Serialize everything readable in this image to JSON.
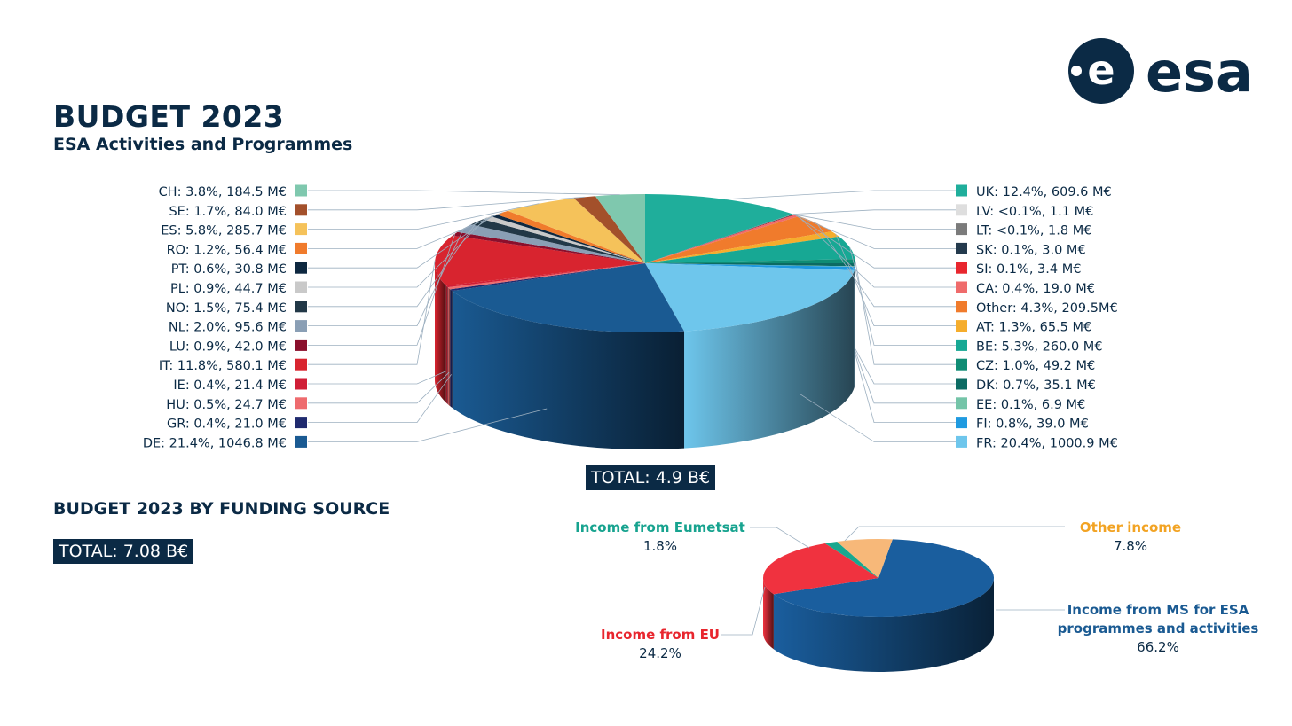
{
  "header": {
    "title": "BUDGET 2023",
    "subtitle": "ESA Activities and Programmes",
    "logo_text": "esa"
  },
  "totals": {
    "main": "TOTAL: 4.9 B€",
    "funding": "TOTAL: 7.08 B€"
  },
  "funding_section": {
    "title": "BUDGET 2023 BY FUNDING SOURCE"
  },
  "colors": {
    "navy": "#0b2a45",
    "leader_line": "#9db0c0"
  },
  "chart_data": [
    {
      "type": "pie",
      "title": "ESA Activities and Programmes",
      "total": "TOTAL: 4.9 B€",
      "slices": [
        {
          "code": "UK",
          "label": "UK: 12.4%, 609.6 M€",
          "percent": 12.4,
          "value_meur": 609.6,
          "color": "#1fae9b"
        },
        {
          "code": "LV",
          "label": "LV: <0.1%, 1.1 M€",
          "percent": 0.02,
          "value_meur": 1.1,
          "color": "#dedede"
        },
        {
          "code": "LT",
          "label": "LT: <0.1%, 1.8 M€",
          "percent": 0.04,
          "value_meur": 1.8,
          "color": "#7b7b7b"
        },
        {
          "code": "SK",
          "label": "SK: 0.1%, 3.0 M€",
          "percent": 0.1,
          "value_meur": 3.0,
          "color": "#243a4d"
        },
        {
          "code": "SI",
          "label": "SI: 0.1%, 3.4 M€",
          "percent": 0.1,
          "value_meur": 3.4,
          "color": "#e8262e"
        },
        {
          "code": "CA",
          "label": "CA: 0.4%, 19.0 M€",
          "percent": 0.4,
          "value_meur": 19.0,
          "color": "#ef6b6b"
        },
        {
          "code": "Other",
          "label": "Other: 4.3%, 209.5M€",
          "percent": 4.3,
          "value_meur": 209.5,
          "color": "#f07b2c"
        },
        {
          "code": "AT",
          "label": "AT: 1.3%, 65.5 M€",
          "percent": 1.3,
          "value_meur": 65.5,
          "color": "#f5ad2d"
        },
        {
          "code": "BE",
          "label": "BE: 5.3%, 260.0 M€",
          "percent": 5.3,
          "value_meur": 260.0,
          "color": "#17a894"
        },
        {
          "code": "CZ",
          "label": "CZ: 1.0%, 49.2 M€",
          "percent": 1.0,
          "value_meur": 49.2,
          "color": "#0f8c74"
        },
        {
          "code": "DK",
          "label": "DK: 0.7%, 35.1 M€",
          "percent": 0.7,
          "value_meur": 35.1,
          "color": "#0c6b63"
        },
        {
          "code": "EE",
          "label": "EE:  0.1%, 6.9 M€",
          "percent": 0.1,
          "value_meur": 6.9,
          "color": "#74c4a8"
        },
        {
          "code": "FI",
          "label": "FI: 0.8%, 39.0 M€",
          "percent": 0.8,
          "value_meur": 39.0,
          "color": "#1f9ae0"
        },
        {
          "code": "FR",
          "label": "FR: 20.4%, 1000.9 M€",
          "percent": 20.4,
          "value_meur": 1000.9,
          "color": "#6ec6ec"
        },
        {
          "code": "DE",
          "label": "DE: 21.4%, 1046.8 M€",
          "percent": 21.4,
          "value_meur": 1046.8,
          "color": "#1a5a92"
        },
        {
          "code": "GR",
          "label": "GR: 0.4%, 21.0 M€",
          "percent": 0.4,
          "value_meur": 21.0,
          "color": "#1f2a6e"
        },
        {
          "code": "HU",
          "label": "HU: 0.5%, 24.7 M€",
          "percent": 0.5,
          "value_meur": 24.7,
          "color": "#ee6b6e"
        },
        {
          "code": "IE",
          "label": "IE: 0.4%, 21.4 M€",
          "percent": 0.4,
          "value_meur": 21.4,
          "color": "#d01e36"
        },
        {
          "code": "IT",
          "label": "IT: 11.8%, 580.1 M€",
          "percent": 11.8,
          "value_meur": 580.1,
          "color": "#d8242f"
        },
        {
          "code": "LU",
          "label": "LU: 0.9%, 42.0 M€",
          "percent": 0.9,
          "value_meur": 42.0,
          "color": "#8a0f2c"
        },
        {
          "code": "NL",
          "label": "NL: 2.0%, 95.6 M€",
          "percent": 2.0,
          "value_meur": 95.6,
          "color": "#8a9fb5"
        },
        {
          "code": "NO",
          "label": "NO: 1.5%, 75.4 M€",
          "percent": 1.5,
          "value_meur": 75.4,
          "color": "#223847"
        },
        {
          "code": "PL",
          "label": "PL: 0.9%, 44.7 M€",
          "percent": 0.9,
          "value_meur": 44.7,
          "color": "#c9c9c9"
        },
        {
          "code": "PT",
          "label": "PT: 0.6%, 30.8 M€",
          "percent": 0.6,
          "value_meur": 30.8,
          "color": "#0e2840"
        },
        {
          "code": "RO",
          "label": "RO: 1.2%, 56.4 M€",
          "percent": 1.2,
          "value_meur": 56.4,
          "color": "#f07b2c"
        },
        {
          "code": "ES",
          "label": "ES: 5.8%, 285.7 M€",
          "percent": 5.8,
          "value_meur": 285.7,
          "color": "#f5c25a"
        },
        {
          "code": "SE",
          "label": "SE: 1.7%, 84.0 M€",
          "percent": 1.7,
          "value_meur": 84.0,
          "color": "#a3502b"
        },
        {
          "code": "CH",
          "label": "CH: 3.8%, 184.5 M€",
          "percent": 3.8,
          "value_meur": 184.5,
          "color": "#7fc8ae"
        }
      ],
      "legend_left": [
        "CH",
        "SE",
        "ES",
        "RO",
        "PT",
        "PL",
        "NO",
        "NL",
        "LU",
        "IT",
        "IE",
        "HU",
        "GR",
        "DE"
      ],
      "legend_right": [
        "UK",
        "LV",
        "LT",
        "SK",
        "SI",
        "CA",
        "Other",
        "AT",
        "BE",
        "CZ",
        "DK",
        "EE",
        "FI",
        "FR"
      ]
    },
    {
      "type": "pie",
      "title": "BUDGET 2023 BY FUNDING SOURCE",
      "total": "TOTAL: 7.08 B€",
      "slices": [
        {
          "name": "Income from MS for ESA programmes and activities",
          "lines": [
            "Income from MS for ESA",
            "programmes and activities"
          ],
          "percent": 66.2,
          "percent_label": "66.2%",
          "color": "#1a5e9e",
          "label_color": "#1a5a92"
        },
        {
          "name": "Income from EU",
          "lines": [
            "Income from EU"
          ],
          "percent": 24.2,
          "percent_label": "24.2%",
          "color": "#f0323f",
          "label_color": "#e8262e"
        },
        {
          "name": "Income from Eumetsat",
          "lines": [
            "Income from Eumetsat"
          ],
          "percent": 1.8,
          "percent_label": "1.8%",
          "color": "#18a88f",
          "label_color": "#17a38f"
        },
        {
          "name": "Other income",
          "lines": [
            "Other income"
          ],
          "percent": 7.8,
          "percent_label": "7.8%",
          "color": "#f7b879",
          "label_color": "#f2a323"
        }
      ]
    }
  ]
}
